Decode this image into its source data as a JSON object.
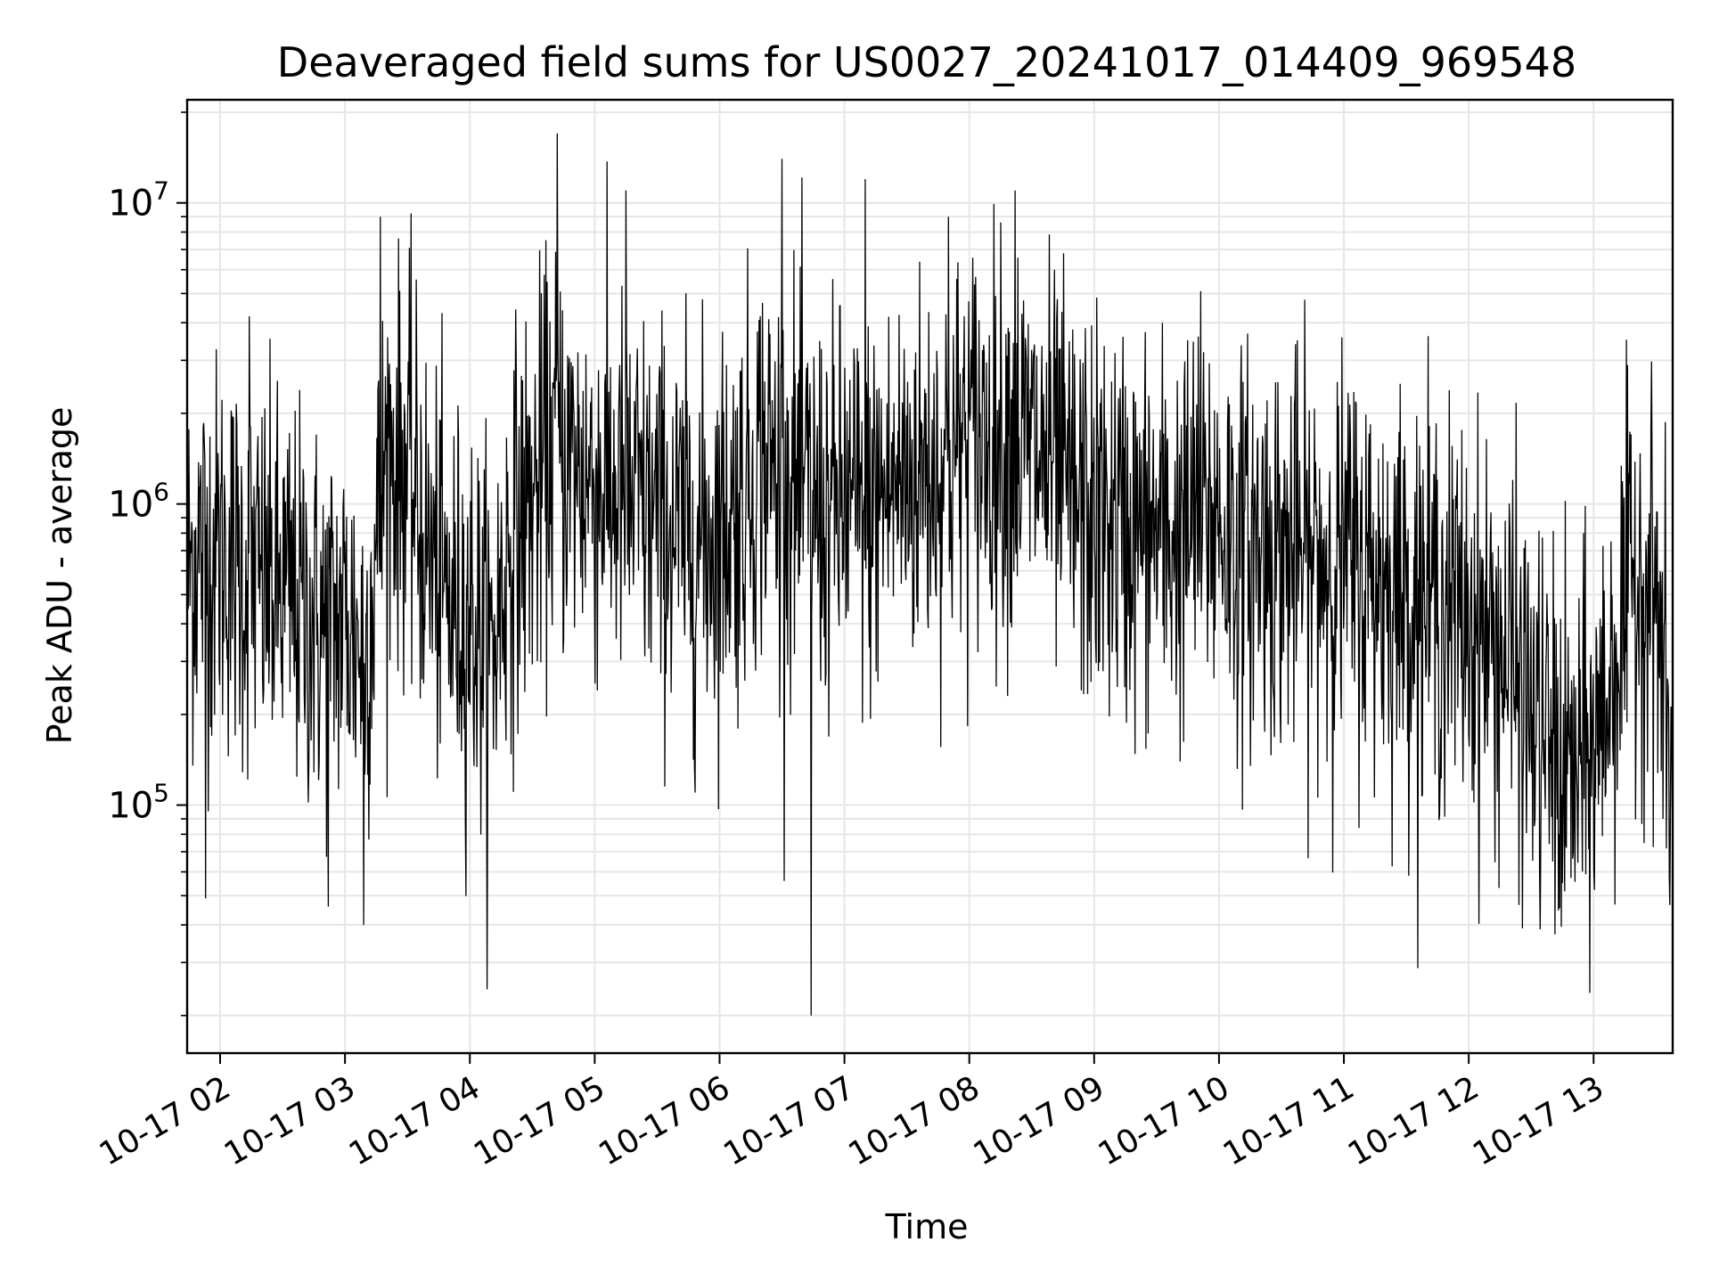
{
  "chart_data": {
    "type": "line",
    "title": "Deaveraged field sums for US0027_20241017_014409_969548",
    "xlabel": "Time",
    "ylabel": "Peak ADU - average",
    "yscale": "log",
    "ylim": [
      15000,
      22000000
    ],
    "xlim": [
      "2024-10-17T01:44:09",
      "2024-10-17T13:38:00"
    ],
    "grid": true,
    "line_color": "#000000",
    "grid_color": "#e6e6e6",
    "x_ticks": [
      {
        "value": "2024-10-17T02:00",
        "label": "10-17 02"
      },
      {
        "value": "2024-10-17T03:00",
        "label": "10-17 03"
      },
      {
        "value": "2024-10-17T04:00",
        "label": "10-17 04"
      },
      {
        "value": "2024-10-17T05:00",
        "label": "10-17 05"
      },
      {
        "value": "2024-10-17T06:00",
        "label": "10-17 06"
      },
      {
        "value": "2024-10-17T07:00",
        "label": "10-17 07"
      },
      {
        "value": "2024-10-17T08:00",
        "label": "10-17 08"
      },
      {
        "value": "2024-10-17T09:00",
        "label": "10-17 09"
      },
      {
        "value": "2024-10-17T10:00",
        "label": "10-17 10"
      },
      {
        "value": "2024-10-17T11:00",
        "label": "10-17 11"
      },
      {
        "value": "2024-10-17T12:00",
        "label": "10-17 12"
      },
      {
        "value": "2024-10-17T13:00",
        "label": "10-17 13"
      }
    ],
    "y_ticks": [
      {
        "value": 100000,
        "base": "10",
        "exp": "5"
      },
      {
        "value": 1000000,
        "base": "10",
        "exp": "6"
      },
      {
        "value": 10000000,
        "base": "10",
        "exp": "7"
      }
    ],
    "series": [
      {
        "x": [
          "2024-10-17T01:44",
          "2024-10-17T01:50",
          "2024-10-17T02:00",
          "2024-10-17T02:10",
          "2024-10-17T02:20",
          "2024-10-17T02:30",
          "2024-10-17T02:40",
          "2024-10-17T02:50",
          "2024-10-17T03:00",
          "2024-10-17T03:10",
          "2024-10-17T03:20",
          "2024-10-17T03:30",
          "2024-10-17T03:40",
          "2024-10-17T03:50",
          "2024-10-17T04:00",
          "2024-10-17T04:10",
          "2024-10-17T04:20",
          "2024-10-17T04:30",
          "2024-10-17T04:40",
          "2024-10-17T04:50",
          "2024-10-17T05:00",
          "2024-10-17T05:10",
          "2024-10-17T05:20",
          "2024-10-17T05:30",
          "2024-10-17T05:40",
          "2024-10-17T05:50",
          "2024-10-17T06:00",
          "2024-10-17T06:10",
          "2024-10-17T06:20",
          "2024-10-17T06:30",
          "2024-10-17T06:40",
          "2024-10-17T06:50",
          "2024-10-17T07:00",
          "2024-10-17T07:10",
          "2024-10-17T07:20",
          "2024-10-17T07:30",
          "2024-10-17T07:40",
          "2024-10-17T07:50",
          "2024-10-17T08:00",
          "2024-10-17T08:10",
          "2024-10-17T08:20",
          "2024-10-17T08:30",
          "2024-10-17T08:40",
          "2024-10-17T08:50",
          "2024-10-17T09:00",
          "2024-10-17T09:10",
          "2024-10-17T09:20",
          "2024-10-17T09:30",
          "2024-10-17T09:40",
          "2024-10-17T09:50",
          "2024-10-17T10:00",
          "2024-10-17T10:10",
          "2024-10-17T10:20",
          "2024-10-17T10:30",
          "2024-10-17T10:40",
          "2024-10-17T10:50",
          "2024-10-17T11:00",
          "2024-10-17T11:10",
          "2024-10-17T11:20",
          "2024-10-17T11:30",
          "2024-10-17T11:40",
          "2024-10-17T11:50",
          "2024-10-17T12:00",
          "2024-10-17T12:10",
          "2024-10-17T12:20",
          "2024-10-17T12:30",
          "2024-10-17T12:40",
          "2024-10-17T12:50",
          "2024-10-17T13:00",
          "2024-10-17T13:10",
          "2024-10-17T13:20",
          "2024-10-17T13:30",
          "2024-10-17T13:38"
        ],
        "y": [
          600000,
          700000,
          700000,
          600000,
          550000,
          500000,
          450000,
          380000,
          420000,
          320000,
          1500000,
          1300000,
          700000,
          450000,
          450000,
          300000,
          800000,
          1000000,
          1600000,
          1300000,
          1200000,
          1100000,
          1000000,
          900000,
          800000,
          750000,
          850000,
          1000000,
          1500000,
          1200000,
          1100000,
          900000,
          1000000,
          900000,
          1100000,
          1200000,
          1300000,
          1400000,
          1700000,
          1600000,
          1700000,
          1500000,
          1300000,
          1000000,
          900000,
          850000,
          800000,
          800000,
          750000,
          900000,
          900000,
          700000,
          750000,
          700000,
          650000,
          650000,
          650000,
          600000,
          550000,
          500000,
          500000,
          450000,
          400000,
          350000,
          300000,
          200000,
          150000,
          120000,
          150000,
          300000,
          600000,
          500000,
          100000
        ],
        "spikes": [
          {
            "x": "2024-10-17T01:53",
            "y": 49000
          },
          {
            "x": "2024-10-17T02:14",
            "y": 4200000
          },
          {
            "x": "2024-10-17T02:52",
            "y": 46000
          },
          {
            "x": "2024-10-17T03:09",
            "y": 40000
          },
          {
            "x": "2024-10-17T03:17",
            "y": 9000000
          },
          {
            "x": "2024-10-17T04:42",
            "y": 17000000
          },
          {
            "x": "2024-10-17T05:15",
            "y": 11000000
          },
          {
            "x": "2024-10-17T06:30",
            "y": 14000000
          },
          {
            "x": "2024-10-17T06:44",
            "y": 20000
          },
          {
            "x": "2024-10-17T07:10",
            "y": 12000000
          },
          {
            "x": "2024-10-17T07:50",
            "y": 9000000
          },
          {
            "x": "2024-10-17T08:22",
            "y": 11000000
          },
          {
            "x": "2024-10-17T09:50",
            "y": 3600000
          },
          {
            "x": "2024-10-17T12:45",
            "y": 55000
          }
        ]
      }
    ]
  }
}
